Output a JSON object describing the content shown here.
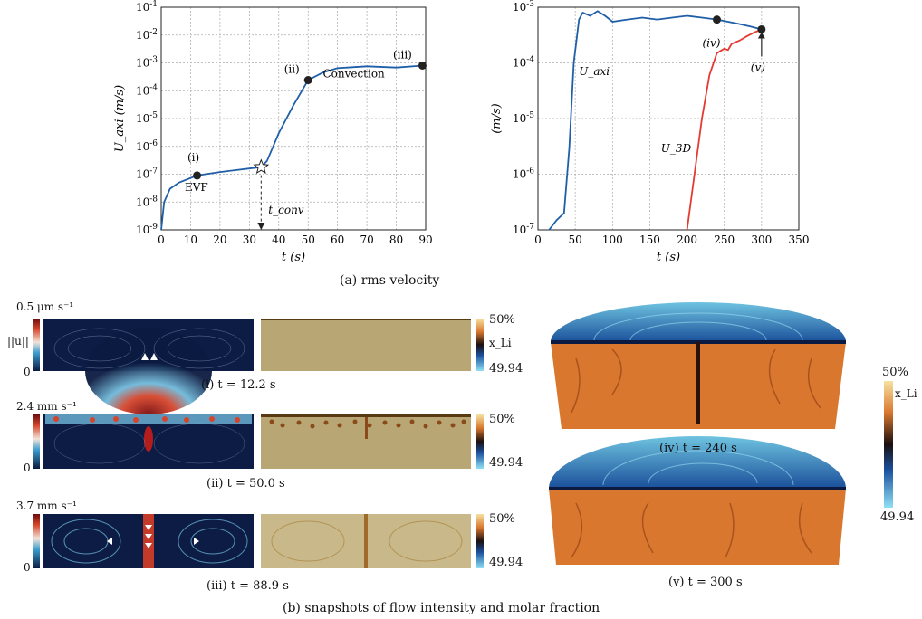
{
  "chart_data": [
    {
      "type": "line",
      "ylabel": "U_axi (m/s)",
      "xlabel": "t (s)",
      "xlim": [
        0,
        90
      ],
      "ylim": [
        1e-09,
        0.1
      ],
      "yscale": "log",
      "grid": true,
      "x_ticks": [
        0,
        10,
        20,
        30,
        40,
        50,
        60,
        70,
        80,
        90
      ],
      "series": [
        {
          "values": [
            [
              0,
              1e-09
            ],
            [
              1,
              1e-08
            ],
            [
              3,
              3e-08
            ],
            [
              6,
              5e-08
            ],
            [
              12.2,
              9e-08
            ],
            [
              20,
              1.2e-07
            ],
            [
              30,
              1.6e-07
            ],
            [
              34,
              1.8e-07
            ],
            [
              36,
              3e-07
            ],
            [
              40,
              3e-06
            ],
            [
              45,
              3e-05
            ],
            [
              50,
              0.00024
            ],
            [
              55,
              0.00045
            ],
            [
              60,
              0.00065
            ],
            [
              70,
              0.00075
            ],
            [
              80,
              0.00068
            ],
            [
              88.9,
              0.0008
            ]
          ]
        }
      ],
      "markers": [
        {
          "label": "(i)",
          "x": 12.2,
          "y": 9e-08
        },
        {
          "label": "(ii)",
          "x": 50,
          "y": 0.00024
        },
        {
          "label": "(iii)",
          "x": 88.9,
          "y": 0.0008
        }
      ],
      "annotations": [
        "EVF",
        "Convection",
        "t_conv"
      ],
      "t_conv": 34
    },
    {
      "type": "line",
      "ylabel": "(m/s)",
      "xlabel": "t (s)",
      "xlim": [
        0,
        350
      ],
      "ylim": [
        1e-07,
        0.001
      ],
      "yscale": "log",
      "grid": true,
      "x_ticks": [
        0,
        50,
        100,
        150,
        200,
        250,
        300,
        350
      ],
      "series": [
        {
          "name": "U_axi",
          "values": [
            [
              15,
              1e-07
            ],
            [
              25,
              1.5e-07
            ],
            [
              35,
              2e-07
            ],
            [
              42,
              3e-06
            ],
            [
              48,
              0.0001
            ],
            [
              55,
              0.0006
            ],
            [
              60,
              0.0008
            ],
            [
              70,
              0.0007
            ],
            [
              80,
              0.00085
            ],
            [
              90,
              0.0007
            ],
            [
              100,
              0.00055
            ],
            [
              120,
              0.0006
            ],
            [
              140,
              0.00065
            ],
            [
              160,
              0.0006
            ],
            [
              180,
              0.00065
            ],
            [
              200,
              0.0007
            ],
            [
              220,
              0.00065
            ],
            [
              240,
              0.0006
            ],
            [
              255,
              0.00055
            ],
            [
              270,
              0.0005
            ],
            [
              285,
              0.00045
            ],
            [
              300,
              0.0004
            ]
          ]
        },
        {
          "name": "U_3D",
          "values": [
            [
              200,
              1e-07
            ],
            [
              210,
              1e-06
            ],
            [
              220,
              1e-05
            ],
            [
              230,
              6e-05
            ],
            [
              240,
              0.00015
            ],
            [
              250,
              0.00018
            ],
            [
              255,
              0.00017
            ],
            [
              260,
              0.00022
            ],
            [
              270,
              0.00025
            ],
            [
              280,
              0.0003
            ],
            [
              290,
              0.00035
            ],
            [
              300,
              0.0004
            ]
          ]
        }
      ],
      "markers": [
        {
          "label": "(iv)",
          "x": 240,
          "y": 0.0006
        },
        {
          "label": "(v)",
          "x": 300,
          "y": 0.0004
        }
      ]
    }
  ],
  "captions": {
    "a": "(a)  rms velocity",
    "b": "(b)  snapshots of flow intensity and molar fraction"
  },
  "snapshots": [
    {
      "vel_max": "0.5 μm s⁻¹",
      "vel_min": "0",
      "frac_max": "50%",
      "frac_min": "49.94",
      "caption": "(i)  t = 12.2 s"
    },
    {
      "vel_max": "2.4 mm s⁻¹",
      "vel_min": "0",
      "frac_max": "50%",
      "frac_min": "49.94",
      "caption": "(ii)  t = 50.0 s"
    },
    {
      "vel_max": "3.7 mm s⁻¹",
      "vel_min": "0",
      "frac_max": "50%",
      "frac_min": "49.94",
      "caption": "(iii)  t = 88.9 s"
    }
  ],
  "vel_symbol": "||u||",
  "frac_symbol": "x_Li",
  "cyl_snapshots": [
    {
      "caption": "(iv)  t = 240 s"
    },
    {
      "caption": "(v)  t = 300 s"
    }
  ],
  "cyl_colorbar": {
    "max": "50%",
    "min": "49.94",
    "symbol": "x_Li"
  },
  "colors": {
    "blue_line": "#1f5fa8",
    "red_line": "#e53a2f",
    "orange": "#d9772e",
    "navy": "#0b1a40",
    "teal": "#3c9ecf"
  }
}
